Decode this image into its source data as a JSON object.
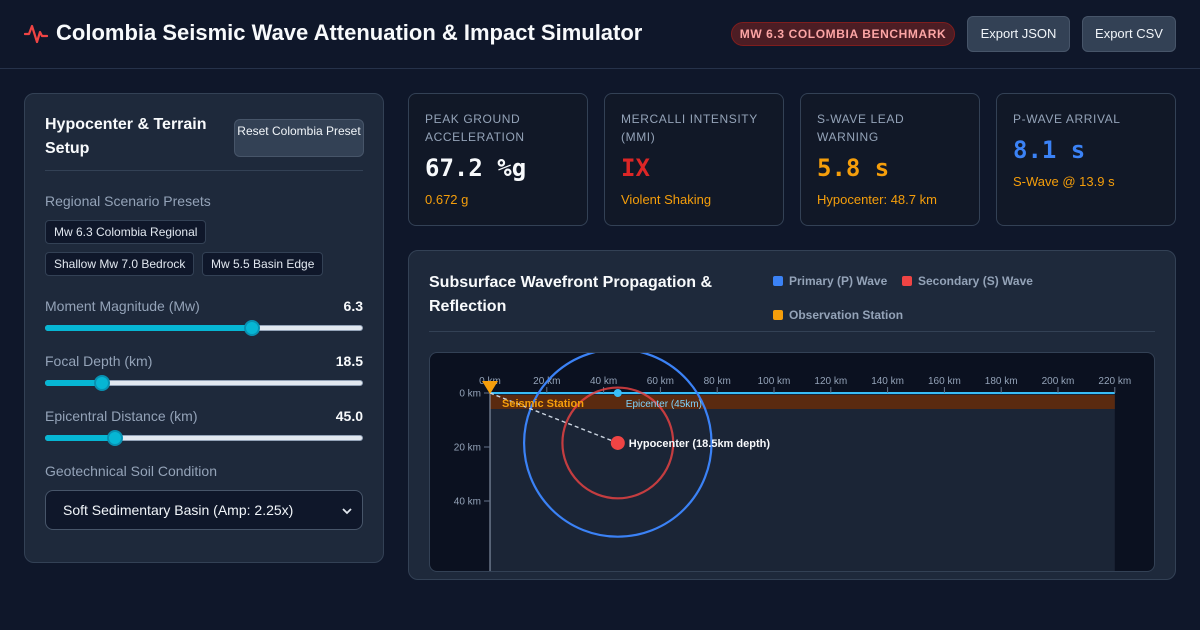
{
  "header": {
    "title": "Colombia Seismic Wave Attenuation & Impact Simulator",
    "badge": "MW 6.3 COLOMBIA BENCHMARK",
    "export_json_label": "Export JSON",
    "export_csv_label": "Export CSV",
    "icon": "pulse-icon",
    "accent_color": "#ef4444"
  },
  "setup_panel": {
    "title": "Hypocenter & Terrain Setup",
    "reset_label": "Reset Colombia Preset",
    "presets_label": "Regional Scenario Presets",
    "presets": [
      "Mw 6.3 Colombia Regional",
      "Shallow Mw 7.0 Bedrock",
      "Mw 5.5 Basin Edge"
    ],
    "sliders": [
      {
        "label": "Moment Magnitude (Mw)",
        "value": "6.3",
        "level": 0.65
      },
      {
        "label": "Focal Depth (km)",
        "value": "18.5",
        "level": 0.18
      },
      {
        "label": "Epicentral Distance (km)",
        "value": "45.0",
        "level": 0.22
      }
    ],
    "soil_label": "Geotechnical Soil Condition",
    "soil_selected": "Soft Sedimentary Basin (Amp: 2.25x)"
  },
  "metrics": [
    {
      "label": "Peak Ground Acceleration",
      "value": "67.2 %g",
      "sub": "0.672 g",
      "color": "#f8fafc"
    },
    {
      "label": "Mercalli Intensity (MMI)",
      "value": "IX",
      "sub": "Violent Shaking",
      "color": "#dc2626"
    },
    {
      "label": "S-Wave Lead Warning",
      "value": "5.8 s",
      "sub": "Hypocenter: 48.7 km",
      "color": "#f59e0b"
    },
    {
      "label": "P-Wave Arrival",
      "value": "8.1 s",
      "sub": "S-Wave @ 13.9 s",
      "color": "#3b82f6"
    }
  ],
  "wave_panel": {
    "title": "Subsurface Wavefront Propagation & Reflection",
    "legend": [
      {
        "label": "Primary (P) Wave",
        "color": "#3b82f6"
      },
      {
        "label": "Secondary (S) Wave",
        "color": "#ef4444"
      },
      {
        "label": "Observation Station",
        "color": "#f59e0b"
      }
    ],
    "x_ticks": [
      "0 km",
      "20 km",
      "40 km",
      "60 km",
      "80 km",
      "100 km",
      "120 km",
      "140 km",
      "160 km",
      "180 km",
      "200 km",
      "220 km"
    ],
    "y_ticks": [
      "0 km",
      "20 km",
      "40 km"
    ],
    "station_label": "Seismic Station",
    "epicenter_label": "Epicenter (45km)",
    "hypocenter_label": "Hypocenter (18.5km depth)",
    "epicenter_km": 45,
    "depth_km": 18.5,
    "p_wave_radius_km": 33,
    "s_wave_radius_km": 19.5
  }
}
